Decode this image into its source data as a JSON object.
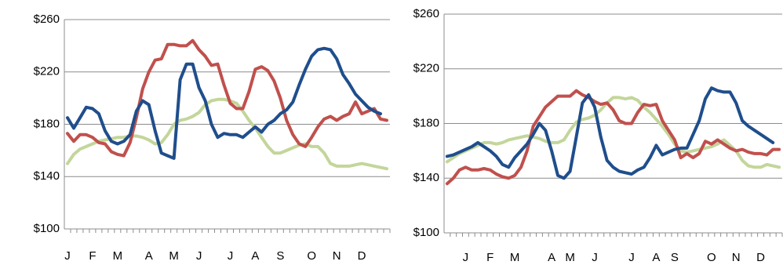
{
  "chart_data": [
    {
      "type": "line",
      "categories": [
        "J",
        null,
        null,
        null,
        "F",
        null,
        null,
        null,
        "M",
        null,
        null,
        null,
        null,
        "A",
        null,
        null,
        null,
        "M",
        null,
        null,
        null,
        "J",
        null,
        null,
        null,
        null,
        "J",
        null,
        null,
        null,
        "A",
        null,
        null,
        null,
        "S",
        null,
        null,
        null,
        null,
        "O",
        null,
        null,
        null,
        "N",
        null,
        null,
        null,
        "D",
        null,
        null,
        null,
        null
      ],
      "series": [
        {
          "color": "#c3d69b",
          "values": [
            150,
            157,
            161,
            163,
            165,
            167,
            168,
            169,
            170,
            170,
            171,
            171,
            170,
            168,
            165,
            166,
            172,
            180,
            183,
            184,
            186,
            189,
            195,
            198,
            199,
            199,
            198,
            196,
            190,
            183,
            177,
            170,
            163,
            158,
            158,
            160,
            162,
            164,
            165,
            163,
            163,
            158,
            150,
            148,
            148,
            148,
            149,
            150,
            149,
            148,
            147,
            146
          ]
        },
        {
          "color": "#c0504d",
          "values": [
            173,
            167,
            172,
            172,
            170,
            166,
            165,
            159,
            157,
            156,
            166,
            185,
            207,
            220,
            229,
            230,
            241,
            241,
            240,
            240,
            244,
            237,
            232,
            225,
            226,
            210,
            196,
            192,
            192,
            205,
            222,
            224,
            221,
            213,
            200,
            183,
            172,
            165,
            163,
            170,
            178,
            184,
            186,
            183,
            186,
            188,
            197,
            188,
            190,
            192,
            184,
            183
          ]
        },
        {
          "color": "#1f4e8c",
          "values": [
            185,
            177,
            185,
            193,
            192,
            188,
            175,
            167,
            165,
            167,
            172,
            190,
            198,
            195,
            175,
            158,
            156,
            154,
            214,
            226,
            226,
            208,
            198,
            180,
            170,
            173,
            172,
            172,
            170,
            174,
            178,
            174,
            180,
            183,
            188,
            191,
            197,
            210,
            222,
            232,
            237,
            238,
            237,
            230,
            218,
            211,
            203,
            198,
            193,
            190,
            188,
            null
          ]
        }
      ],
      "ylim": [
        100,
        260
      ],
      "yticks": [
        {
          "value": 100,
          "label": "$100"
        },
        {
          "value": 140,
          "label": "$140"
        },
        {
          "value": 180,
          "label": "$180"
        },
        {
          "value": 220,
          "label": "$220"
        },
        {
          "value": 260,
          "label": "$260"
        }
      ],
      "grid": true
    },
    {
      "type": "line",
      "categories": [
        null,
        null,
        null,
        "J",
        null,
        null,
        null,
        "F",
        null,
        null,
        null,
        "M",
        null,
        null,
        null,
        null,
        null,
        "A",
        null,
        null,
        "M",
        null,
        null,
        null,
        "J",
        null,
        null,
        null,
        null,
        null,
        "J",
        null,
        null,
        null,
        "A",
        null,
        null,
        "S",
        null,
        null,
        null,
        null,
        null,
        "O",
        null,
        null,
        null,
        "N",
        null,
        null,
        null,
        "D",
        null,
        null,
        null
      ],
      "series": [
        {
          "color": "#c3d69b",
          "values": [
            152,
            155,
            158,
            160,
            162,
            164,
            166,
            166,
            165,
            166,
            168,
            169,
            170,
            171,
            170,
            169,
            167,
            166,
            166,
            168,
            175,
            181,
            183,
            184,
            186,
            190,
            195,
            199,
            199,
            198,
            199,
            197,
            192,
            188,
            183,
            178,
            172,
            165,
            160,
            159,
            160,
            161,
            162,
            163,
            165,
            168,
            164,
            160,
            153,
            149,
            148,
            148,
            150,
            149,
            148
          ]
        },
        {
          "color": "#c0504d",
          "values": [
            136,
            140,
            146,
            148,
            146,
            146,
            147,
            146,
            143,
            141,
            140,
            142,
            148,
            160,
            178,
            185,
            192,
            196,
            200,
            200,
            200,
            204,
            201,
            199,
            196,
            194,
            195,
            190,
            182,
            180,
            180,
            188,
            194,
            193,
            194,
            182,
            175,
            168,
            155,
            158,
            155,
            158,
            167,
            165,
            168,
            165,
            162,
            160,
            161,
            159,
            158,
            158,
            157,
            161,
            161
          ]
        },
        {
          "color": "#1f4e8c",
          "values": [
            156,
            157,
            159,
            161,
            163,
            166,
            163,
            160,
            156,
            150,
            148,
            155,
            160,
            165,
            172,
            180,
            175,
            160,
            142,
            140,
            145,
            170,
            195,
            201,
            192,
            170,
            153,
            148,
            145,
            144,
            143,
            146,
            148,
            155,
            164,
            157,
            159,
            161,
            162,
            162,
            172,
            182,
            198,
            206,
            204,
            203,
            203,
            195,
            182,
            178,
            175,
            172,
            169,
            166,
            null
          ]
        }
      ],
      "ylim": [
        100,
        260
      ],
      "yticks": [
        {
          "value": 100,
          "label": "$100"
        },
        {
          "value": 140,
          "label": "$140"
        },
        {
          "value": 180,
          "label": "$180"
        },
        {
          "value": 220,
          "label": "$220"
        },
        {
          "value": 260,
          "label": "$260"
        }
      ],
      "grid": true
    }
  ]
}
